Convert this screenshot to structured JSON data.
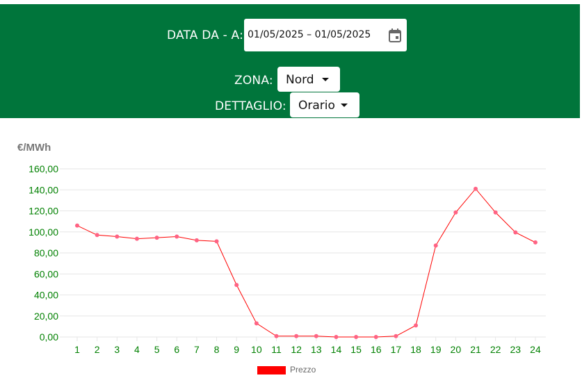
{
  "filters": {
    "date_label": "DATA DA - A:",
    "date_value": "01/05/2025 – 01/05/2025",
    "zone_label": "ZONA:",
    "zone_value": "Nord",
    "detail_label": "DETTAGLIO:",
    "detail_value": "Orario"
  },
  "icons": {
    "calendar": "calendar-icon",
    "dropdown": "caret-down-icon"
  },
  "colors": {
    "header_bg": "#00753b",
    "line": "#ff0000",
    "points": "#ff6384",
    "ticks": "#008000",
    "legend": "#ff0000"
  },
  "chart_data": {
    "type": "line",
    "ylabel": "€/MWh",
    "xlabel": "",
    "title": "",
    "categories": [
      "1",
      "2",
      "3",
      "4",
      "5",
      "6",
      "7",
      "8",
      "9",
      "10",
      "11",
      "12",
      "13",
      "14",
      "15",
      "16",
      "17",
      "18",
      "19",
      "20",
      "21",
      "22",
      "23",
      "24"
    ],
    "series": [
      {
        "name": "Prezzo",
        "values": [
          106,
          97,
          95.5,
          93.5,
          94.5,
          95.5,
          92,
          91,
          49.5,
          13,
          0.8,
          0.8,
          0.8,
          0,
          0,
          0,
          0.8,
          11,
          87,
          118.5,
          141,
          118.5,
          99.5,
          90
        ]
      }
    ],
    "ylim": [
      0,
      160
    ],
    "yticks": [
      "0,00",
      "20,00",
      "40,00",
      "60,00",
      "80,00",
      "100,00",
      "120,00",
      "140,00",
      "160,00"
    ],
    "grid": true,
    "legend": "bottom"
  }
}
